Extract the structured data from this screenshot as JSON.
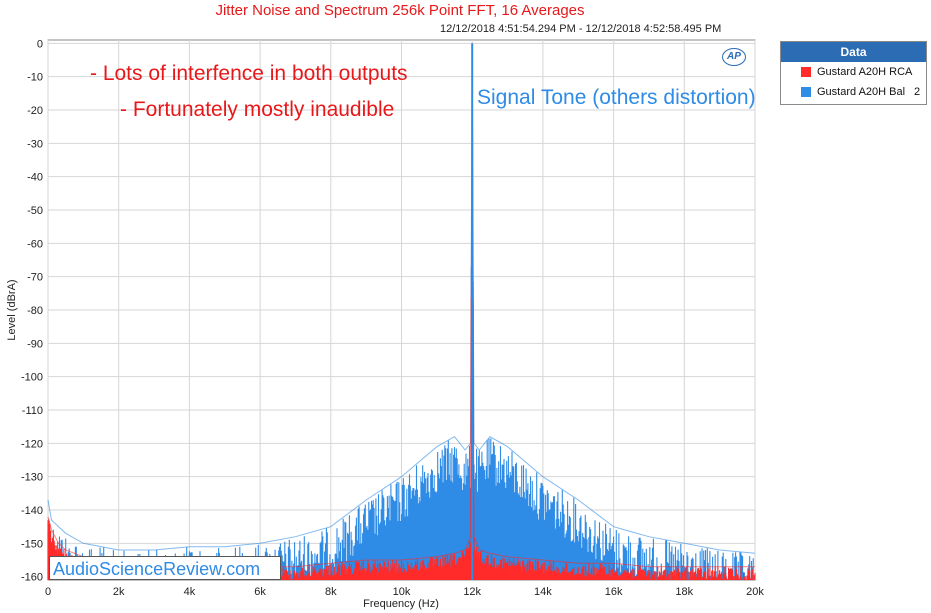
{
  "chart_data": {
    "type": "line",
    "title": "Jitter Noise and Spectrum 256k Point FFT, 16 Averages",
    "timestamp": "12/12/2018 4:51:54.294 PM - 12/12/2018 4:52:58.495 PM",
    "xlabel": "Frequency (Hz)",
    "ylabel": "Level (dBrA)",
    "xlim": [
      0,
      20000
    ],
    "ylim": [
      -161,
      1
    ],
    "x_ticks": [
      0,
      2000,
      4000,
      6000,
      8000,
      10000,
      12000,
      14000,
      16000,
      18000,
      20000
    ],
    "x_tick_labels": [
      "0",
      "2k",
      "4k",
      "6k",
      "8k",
      "10k",
      "12k",
      "14k",
      "16k",
      "18k",
      "20k"
    ],
    "y_ticks": [
      0,
      -10,
      -20,
      -30,
      -40,
      -50,
      -60,
      -70,
      -80,
      -90,
      -100,
      -110,
      -120,
      -130,
      -140,
      -150,
      -160
    ],
    "y_tick_labels": [
      "0",
      "-10",
      "-20",
      "-30",
      "-40",
      "-50",
      "-60",
      "-70",
      "-80",
      "-90",
      "-100",
      "-110",
      "-120",
      "-130",
      "-140",
      "-150",
      "-160"
    ],
    "grid": true,
    "legend_position": "top-right outside",
    "signal_tone_hz": 12000,
    "signal_tone_level": 0,
    "series": [
      {
        "name": "Gustard A20H RCA",
        "color": "#ff2a2a",
        "x": [
          0,
          100,
          300,
          500,
          1000,
          2000,
          3000,
          4000,
          5000,
          6000,
          7000,
          8000,
          9000,
          10000,
          11000,
          11500,
          11800,
          11950,
          12000,
          12050,
          12200,
          12500,
          13000,
          14000,
          15000,
          16000,
          17000,
          18000,
          19000,
          20000
        ],
        "values": [
          -142,
          -146,
          -150,
          -152,
          -154,
          -156,
          -157,
          -157,
          -157,
          -157,
          -157,
          -156,
          -155,
          -155,
          -154,
          -153,
          -152,
          -148,
          0,
          -148,
          -152,
          -153,
          -154,
          -155,
          -156,
          -156,
          -157,
          -157,
          -157,
          -157
        ]
      },
      {
        "name": "Gustard A20H Bal",
        "legend_extra": "2",
        "color": "#2e8be6",
        "x": [
          0,
          100,
          300,
          500,
          1000,
          2000,
          3000,
          4000,
          5000,
          6000,
          7000,
          8000,
          9000,
          10000,
          11000,
          11500,
          11800,
          11950,
          12000,
          12050,
          12200,
          12500,
          13000,
          14000,
          15000,
          16000,
          17000,
          18000,
          19000,
          20000
        ],
        "values": [
          -137,
          -143,
          -145,
          -147,
          -150,
          -152,
          -152,
          -151,
          -151,
          -150,
          -148,
          -145,
          -137,
          -130,
          -121,
          -118,
          -122,
          -120,
          0,
          -120,
          -122,
          -118,
          -121,
          -130,
          -137,
          -145,
          -148,
          -150,
          -152,
          -153
        ]
      }
    ]
  },
  "legend": {
    "header": "Data",
    "items": [
      {
        "label": "Gustard A20H RCA",
        "extra": ""
      },
      {
        "label": "Gustard A20H Bal",
        "extra": "2"
      }
    ]
  },
  "annotations": {
    "line1": "- Lots of interfence in both outputs",
    "line2": "- Fortunately mostly inaudible",
    "signal": "Signal Tone (others distortion)"
  },
  "watermark": "AudioScienceReview.com",
  "logo": "AP"
}
